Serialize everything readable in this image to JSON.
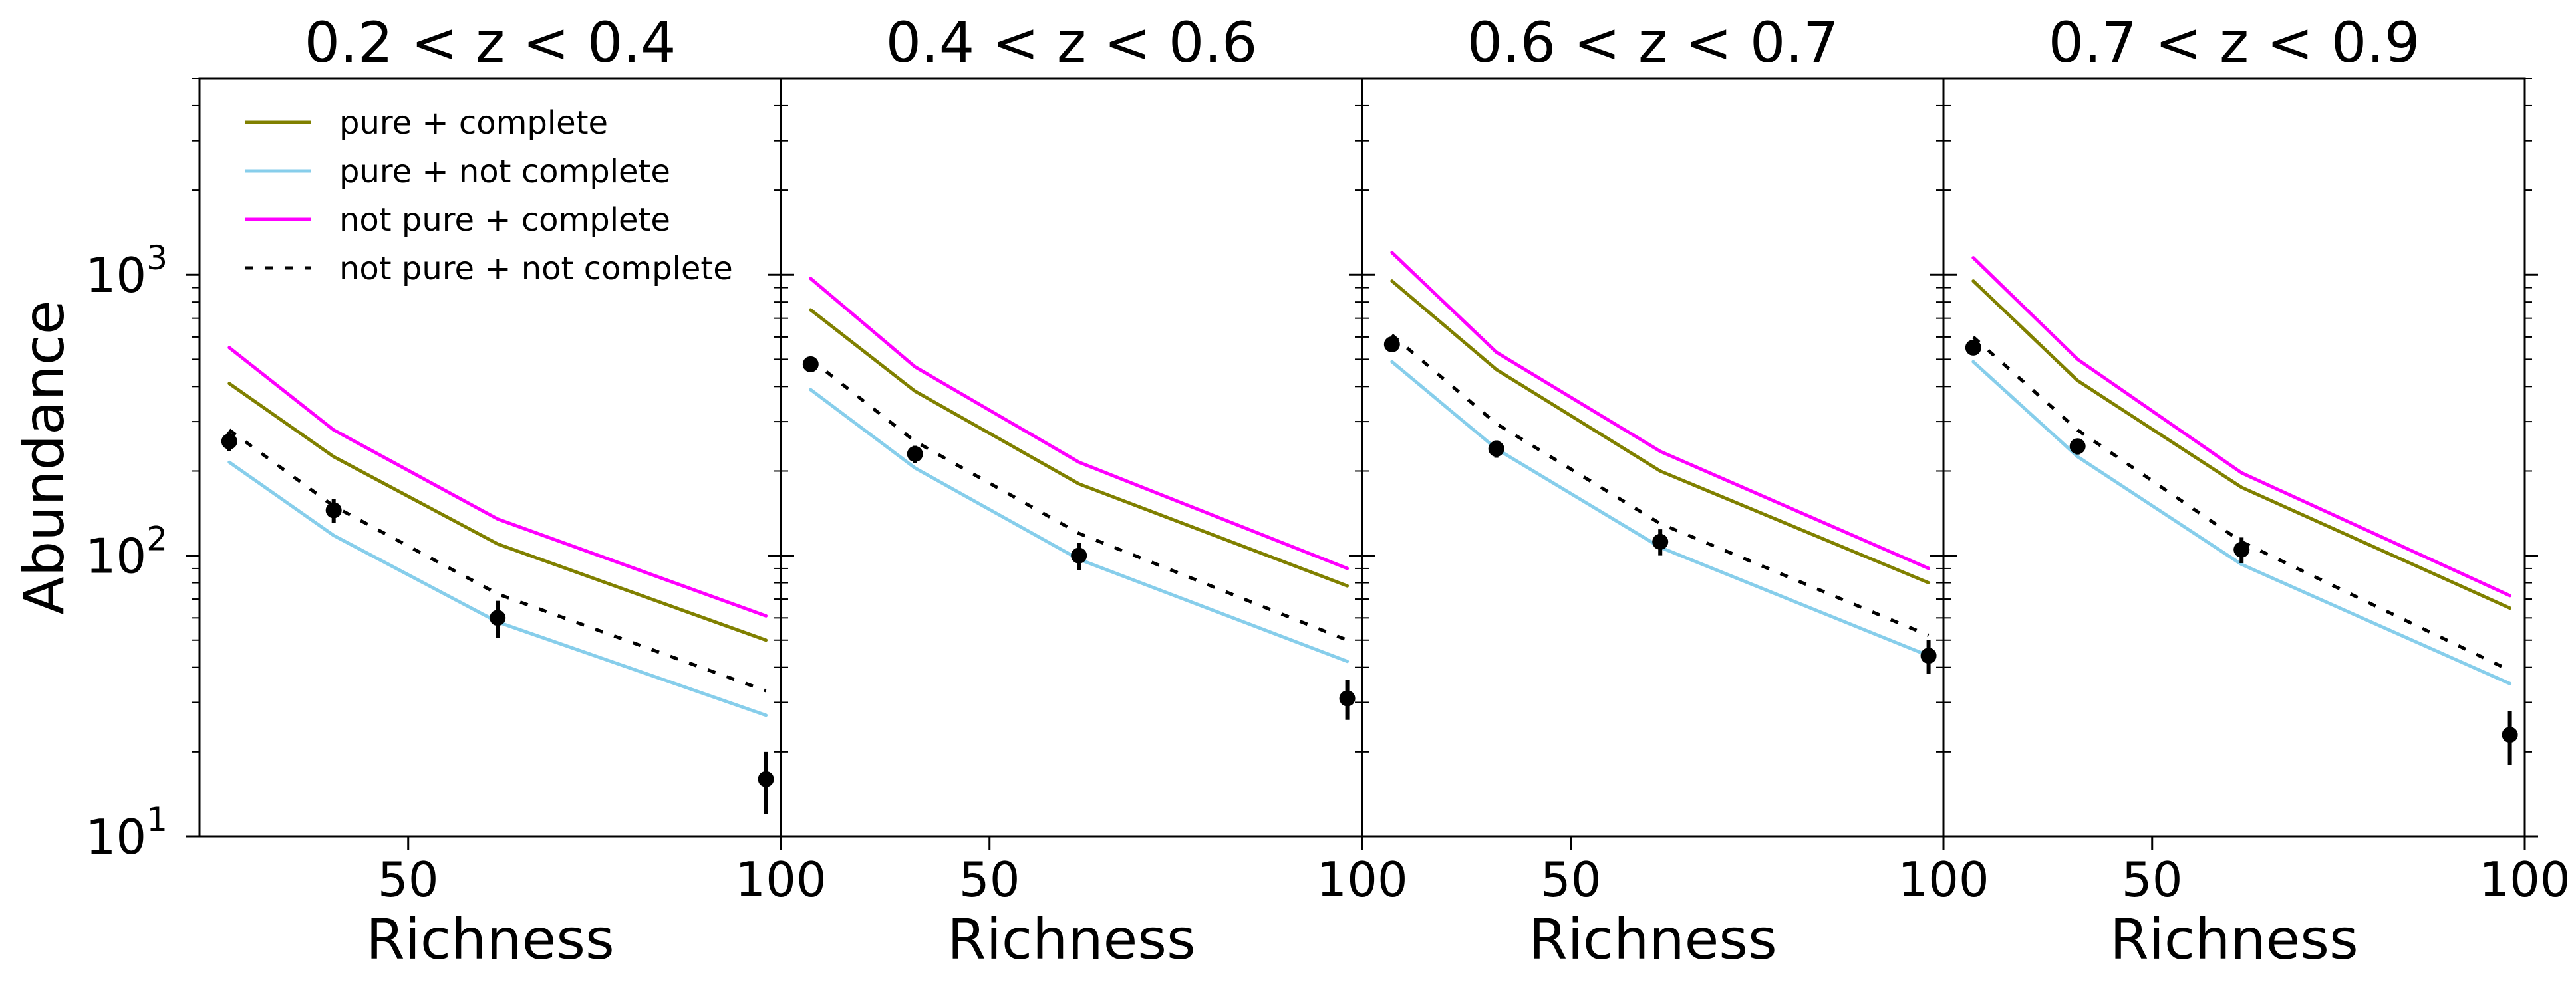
{
  "chart_data": {
    "type": "line",
    "ylabel": "Abundance",
    "xlabel": "Richness",
    "yscale": "log",
    "ylim": [
      10,
      5000
    ],
    "xlim": [
      22,
      100
    ],
    "x_ticks": [
      50,
      100
    ],
    "y_ticks": [
      {
        "value": 10,
        "base": "10",
        "exp": "1"
      },
      {
        "value": 100,
        "base": "10",
        "exp": "2"
      },
      {
        "value": 1000,
        "base": "10",
        "exp": "3"
      }
    ],
    "legend": {
      "placement": "top-left",
      "entries": [
        "pure + complete",
        "pure + not complete",
        "not pure + complete",
        "not pure + not complete"
      ]
    },
    "series_styles": [
      {
        "name": "pure + complete",
        "color": "#808000",
        "dash": "solid"
      },
      {
        "name": "pure + not complete",
        "color": "#87ceeb",
        "dash": "solid"
      },
      {
        "name": "not pure + complete",
        "color": "#ff00ff",
        "dash": "solid"
      },
      {
        "name": "not pure + not complete",
        "color": "#000000",
        "dash": "dotted"
      }
    ],
    "panels": [
      {
        "title": "0.2 < z < 0.4",
        "x": [
          26,
          40,
          62,
          98
        ],
        "series": [
          {
            "name": "pure + complete",
            "values": [
              410,
              225,
              110,
              50
            ]
          },
          {
            "name": "pure + not complete",
            "values": [
              215,
              118,
              58,
              27
            ]
          },
          {
            "name": "not pure + complete",
            "values": [
              550,
              280,
              135,
              61
            ]
          },
          {
            "name": "not pure + not complete",
            "values": [
              280,
              150,
              73,
              33
            ]
          }
        ],
        "observed": {
          "x": [
            26,
            40,
            62,
            98
          ],
          "y": [
            255,
            145,
            60,
            16
          ],
          "err_low": [
            20,
            14,
            9,
            4
          ],
          "err_high": [
            20,
            14,
            9,
            4
          ]
        }
      },
      {
        "title": "0.4 < z < 0.6",
        "x": [
          26,
          40,
          62,
          98
        ],
        "series": [
          {
            "name": "pure + complete",
            "values": [
              750,
              385,
              180,
              78
            ]
          },
          {
            "name": "pure + not complete",
            "values": [
              390,
              205,
              97,
              42
            ]
          },
          {
            "name": "not pure + complete",
            "values": [
              970,
              470,
              215,
              90
            ]
          },
          {
            "name": "not pure + not complete",
            "values": [
              500,
              255,
              120,
              50
            ]
          }
        ],
        "observed": {
          "x": [
            26,
            40,
            62,
            98
          ],
          "y": [
            480,
            230,
            100,
            31
          ],
          "err_low": [
            30,
            16,
            11,
            5
          ],
          "err_high": [
            30,
            16,
            11,
            5
          ]
        }
      },
      {
        "title": "0.6 < z < 0.7",
        "x": [
          26,
          40,
          62,
          98
        ],
        "series": [
          {
            "name": "pure + complete",
            "values": [
              950,
              460,
              200,
              80
            ]
          },
          {
            "name": "pure + not complete",
            "values": [
              490,
              240,
              107,
              44
            ]
          },
          {
            "name": "not pure + complete",
            "values": [
              1200,
              530,
              235,
              90
            ]
          },
          {
            "name": "not pure + not complete",
            "values": [
              610,
              295,
              130,
              52
            ]
          }
        ],
        "observed": {
          "x": [
            26,
            40,
            62,
            98
          ],
          "y": [
            565,
            240,
            112,
            44
          ],
          "err_low": [
            32,
            17,
            12,
            6
          ],
          "err_high": [
            32,
            17,
            12,
            6
          ]
        }
      },
      {
        "title": "0.7 < z < 0.9",
        "x": [
          26,
          40,
          62,
          98
        ],
        "series": [
          {
            "name": "pure + complete",
            "values": [
              950,
              420,
              175,
              65
            ]
          },
          {
            "name": "pure + not complete",
            "values": [
              490,
              225,
              93,
              35
            ]
          },
          {
            "name": "not pure + complete",
            "values": [
              1150,
              500,
              197,
              72
            ]
          },
          {
            "name": "not pure + not complete",
            "values": [
              600,
              280,
              112,
              39
            ]
          }
        ],
        "observed": {
          "x": [
            26,
            40,
            62,
            98
          ],
          "y": [
            550,
            245,
            105,
            23
          ],
          "err_low": [
            30,
            16,
            11,
            5
          ],
          "err_high": [
            30,
            16,
            11,
            5
          ]
        }
      }
    ]
  }
}
